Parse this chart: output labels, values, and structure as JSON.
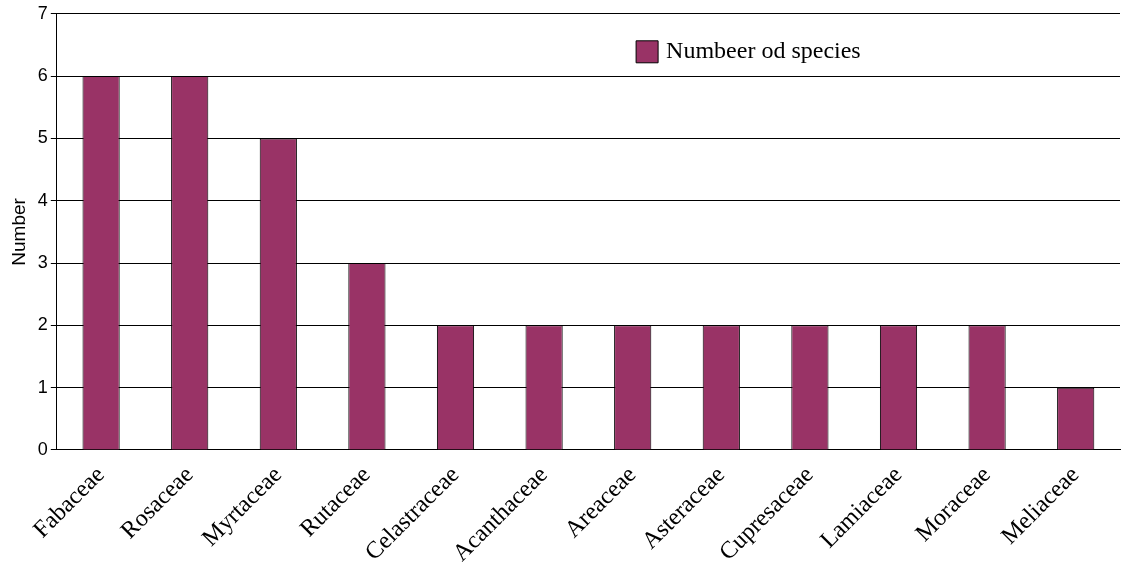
{
  "chart_data": {
    "type": "bar",
    "ylabel": "Number",
    "categories": [
      "Fabaceae",
      "Rosaceae",
      "Myrtaceae",
      "Rutaceae",
      "Celastraceae",
      "Acanthaceae",
      "Areaceae",
      "Asteraceae",
      "Cupresaceae",
      "Lamiaceae",
      "Moraceae",
      "Meliaceae"
    ],
    "series": [
      {
        "name": "Numbeer od species",
        "color": "#993366",
        "values": [
          6,
          6,
          5,
          3,
          2,
          2,
          2,
          2,
          2,
          2,
          2,
          1
        ]
      }
    ],
    "ylim": [
      0,
      7
    ],
    "yticks": [
      0,
      1,
      2,
      3,
      4,
      5,
      6,
      7
    ],
    "grid": "y",
    "legend": "top"
  }
}
